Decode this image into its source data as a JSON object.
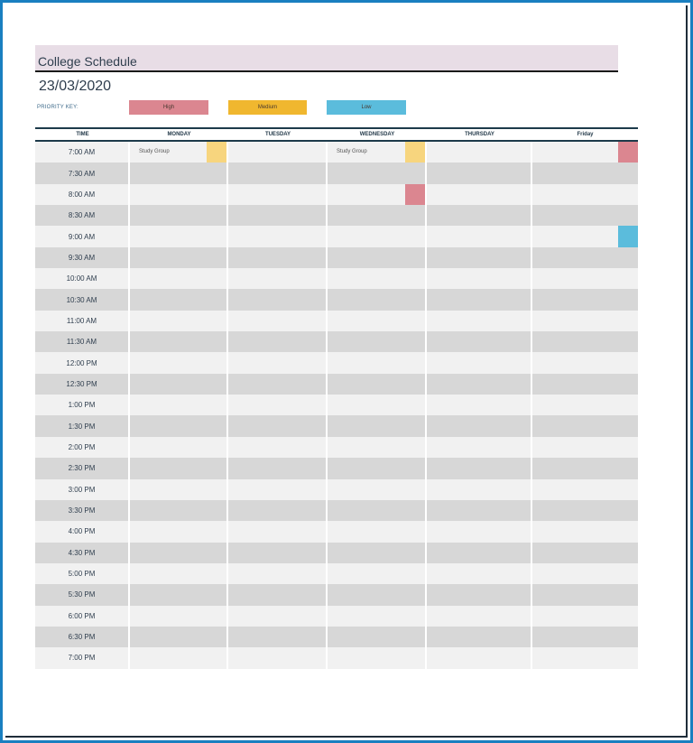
{
  "document": {
    "title": "College Schedule",
    "date": "23/03/2020"
  },
  "priority_key": {
    "label": "PRIORITY KEY:",
    "levels": [
      {
        "label": "High",
        "color": "#db8690"
      },
      {
        "label": "Medium",
        "color": "#f0b72f"
      },
      {
        "label": "Low",
        "color": "#5bbcdc"
      }
    ]
  },
  "colors": {
    "frame_border": "#1a7fc0",
    "title_band": "#e8dde6",
    "row_light": "#f1f1f1",
    "row_dark": "#d7d7d7",
    "flag_high": "#db8690",
    "flag_medium": "#f7d57e",
    "flag_low": "#5bbcdc"
  },
  "schedule": {
    "headers": [
      "TIME",
      "MONDAY",
      "TUESDAY",
      "WEDNESDAY",
      "THURSDAY",
      "Friday"
    ],
    "times": [
      "7:00 AM",
      "7:30 AM",
      "8:00 AM",
      "8:30 AM",
      "9:00 AM",
      "9:30 AM",
      "10:00 AM",
      "10:30 AM",
      "11:00 AM",
      "11:30 AM",
      "12:00 PM",
      "12:30 PM",
      "1:00 PM",
      "1:30 PM",
      "2:00 PM",
      "2:30 PM",
      "3:00 PM",
      "3:30 PM",
      "4:00 PM",
      "4:30 PM",
      "5:00 PM",
      "5:30 PM",
      "6:00 PM",
      "6:30 PM",
      "7:00 PM"
    ],
    "entries": [
      {
        "row": 0,
        "day": 1,
        "text": "Study Group",
        "priority": "medium"
      },
      {
        "row": 0,
        "day": 3,
        "text": "Study Group",
        "priority": "medium"
      },
      {
        "row": 0,
        "day": 5,
        "text": "",
        "priority": "high"
      },
      {
        "row": 2,
        "day": 3,
        "text": "",
        "priority": "high"
      },
      {
        "row": 4,
        "day": 5,
        "text": "",
        "priority": "low"
      }
    ]
  }
}
